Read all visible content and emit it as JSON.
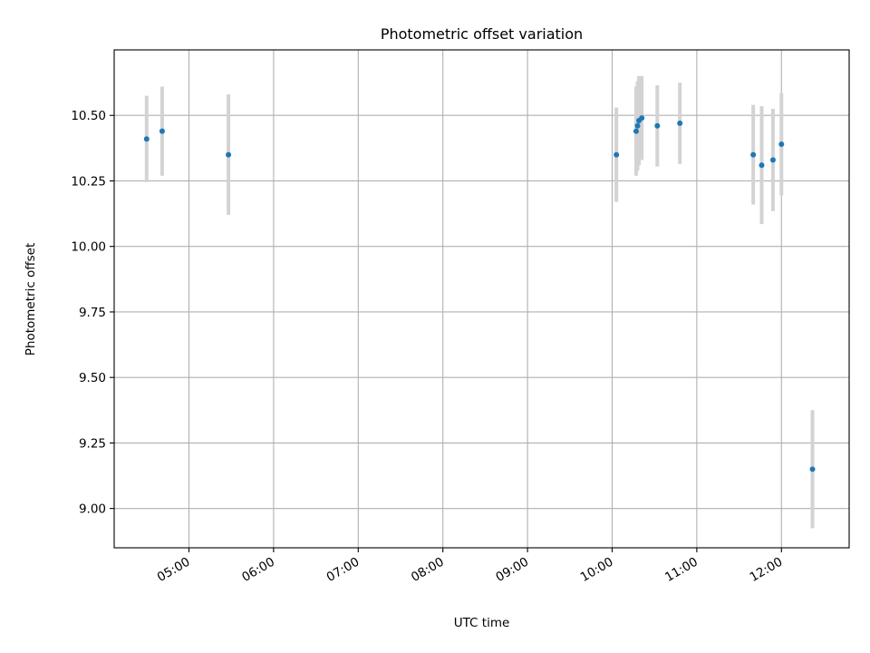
{
  "chart_data": {
    "type": "scatter",
    "title": "Photometric offset variation",
    "xlabel": "UTC time",
    "ylabel": "Photometric offset",
    "x_axis_type": "time",
    "xlim": [
      "04:07",
      "12:48"
    ],
    "ylim": [
      8.85,
      10.75
    ],
    "x_ticks": [
      "05:00",
      "06:00",
      "07:00",
      "08:00",
      "09:00",
      "10:00",
      "11:00",
      "12:00"
    ],
    "y_ticks": [
      9.0,
      9.25,
      9.5,
      9.75,
      10.0,
      10.25,
      10.5
    ],
    "y_tick_labels": [
      "9.00",
      "9.25",
      "9.50",
      "9.75",
      "10.00",
      "10.25",
      "10.50"
    ],
    "grid": true,
    "legend": false,
    "colors": {
      "marker": "#1f77b4",
      "error_bar": "#d3d3d3",
      "grid": "#b0b0b0"
    },
    "points": [
      {
        "time": "04:30",
        "value": 10.41,
        "error": 0.165
      },
      {
        "time": "04:41",
        "value": 10.44,
        "error": 0.17
      },
      {
        "time": "05:28",
        "value": 10.35,
        "error": 0.23
      },
      {
        "time": "10:03",
        "value": 10.35,
        "error": 0.18
      },
      {
        "time": "10:17",
        "value": 10.44,
        "error": 0.17
      },
      {
        "time": "10:18",
        "value": 10.46,
        "error": 0.17
      },
      {
        "time": "10:19",
        "value": 10.48,
        "error": 0.17
      },
      {
        "time": "10:21",
        "value": 10.49,
        "error": 0.16
      },
      {
        "time": "10:32",
        "value": 10.46,
        "error": 0.155
      },
      {
        "time": "10:48",
        "value": 10.47,
        "error": 0.155
      },
      {
        "time": "11:40",
        "value": 10.35,
        "error": 0.19
      },
      {
        "time": "11:46",
        "value": 10.31,
        "error": 0.225
      },
      {
        "time": "11:54",
        "value": 10.33,
        "error": 0.195
      },
      {
        "time": "12:00",
        "value": 10.39,
        "error": 0.195
      },
      {
        "time": "12:22",
        "value": 9.15,
        "error": 0.225
      }
    ]
  }
}
